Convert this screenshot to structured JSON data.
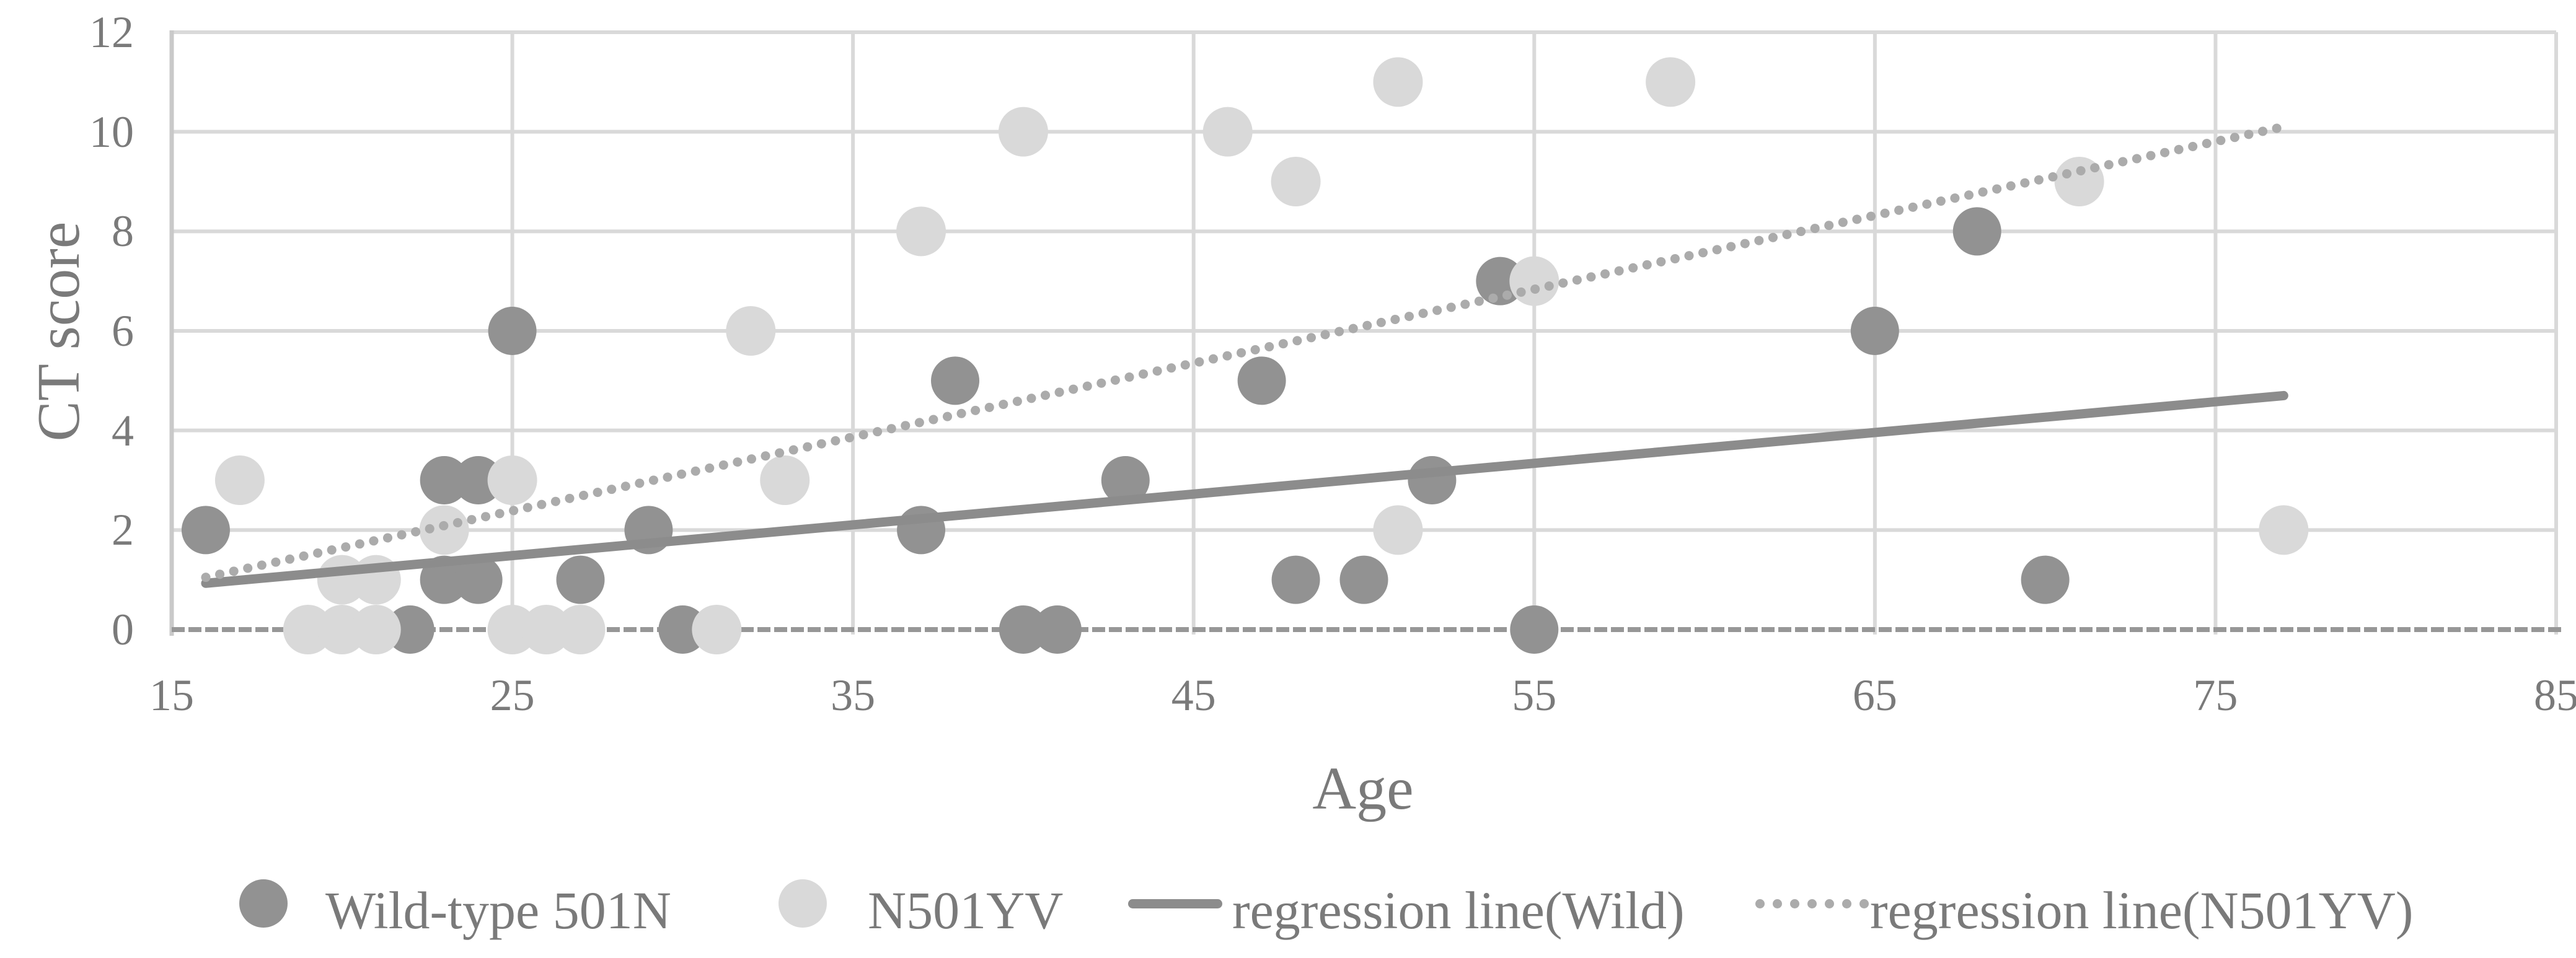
{
  "chart_data": {
    "type": "scatter",
    "title": "",
    "xlabel": "Age",
    "ylabel": "CT score",
    "xlim": [
      15,
      85
    ],
    "ylim": [
      0,
      12
    ],
    "x_ticks": [
      15,
      25,
      35,
      45,
      55,
      65,
      75,
      85
    ],
    "y_ticks": [
      0,
      2,
      4,
      6,
      8,
      10,
      12
    ],
    "grid": true,
    "legend_position": "bottom",
    "series": [
      {
        "name": "Wild-type 501N",
        "kind": "scatter",
        "marker": "circle",
        "color": "#929292",
        "points": [
          [
            16,
            2
          ],
          [
            22,
            0
          ],
          [
            23,
            1
          ],
          [
            23,
            3
          ],
          [
            24,
            1
          ],
          [
            24,
            3
          ],
          [
            25,
            6
          ],
          [
            27,
            1
          ],
          [
            29,
            2
          ],
          [
            30,
            0
          ],
          [
            37,
            2
          ],
          [
            38,
            5
          ],
          [
            40,
            0
          ],
          [
            41,
            0
          ],
          [
            43,
            3
          ],
          [
            47,
            5
          ],
          [
            48,
            1
          ],
          [
            50,
            1
          ],
          [
            52,
            3
          ],
          [
            54,
            7
          ],
          [
            55,
            0
          ],
          [
            65,
            6
          ],
          [
            68,
            8
          ],
          [
            70,
            1
          ]
        ]
      },
      {
        "name": "N501YV",
        "kind": "scatter",
        "marker": "circle",
        "color": "#D9D9D9",
        "points": [
          [
            17,
            3
          ],
          [
            19,
            0
          ],
          [
            20,
            0
          ],
          [
            20,
            1
          ],
          [
            21,
            0
          ],
          [
            21,
            1
          ],
          [
            23,
            2
          ],
          [
            25,
            0
          ],
          [
            25,
            3
          ],
          [
            26,
            0
          ],
          [
            27,
            0
          ],
          [
            31,
            0
          ],
          [
            32,
            6
          ],
          [
            33,
            3
          ],
          [
            37,
            8
          ],
          [
            40,
            10
          ],
          [
            46,
            10
          ],
          [
            48,
            9
          ],
          [
            51,
            2
          ],
          [
            51,
            11
          ],
          [
            55,
            7
          ],
          [
            59,
            11
          ],
          [
            71,
            9
          ],
          [
            77,
            2
          ]
        ]
      },
      {
        "name": "regression line(Wild)",
        "kind": "line",
        "style": "solid",
        "color": "#8C8C8C",
        "line": [
          [
            16,
            0.93
          ],
          [
            77,
            4.7
          ]
        ]
      },
      {
        "name": "regression line(N501YV)",
        "kind": "line",
        "style": "dotted",
        "color": "#ABABAB",
        "line": [
          [
            16,
            1.05
          ],
          [
            77,
            10.1
          ]
        ]
      }
    ],
    "legend": [
      {
        "marker": "circle-dark",
        "label": "Wild-type 501N"
      },
      {
        "marker": "circle-light",
        "label": "N501YV"
      },
      {
        "marker": "line-solid",
        "label": "regression line(Wild)"
      },
      {
        "marker": "line-dotted",
        "label": "regression line(N501YV)"
      }
    ],
    "colors": {
      "wild": "#929292",
      "n501yv": "#D9D9D9",
      "regression_wild": "#8C8C8C",
      "regression_n501yv": "#ABABAB",
      "gridline": "#D9D9D9",
      "axis_line": "#C9C9C9",
      "axis_baseline": "#979797",
      "text": "#7A7A7A"
    }
  }
}
